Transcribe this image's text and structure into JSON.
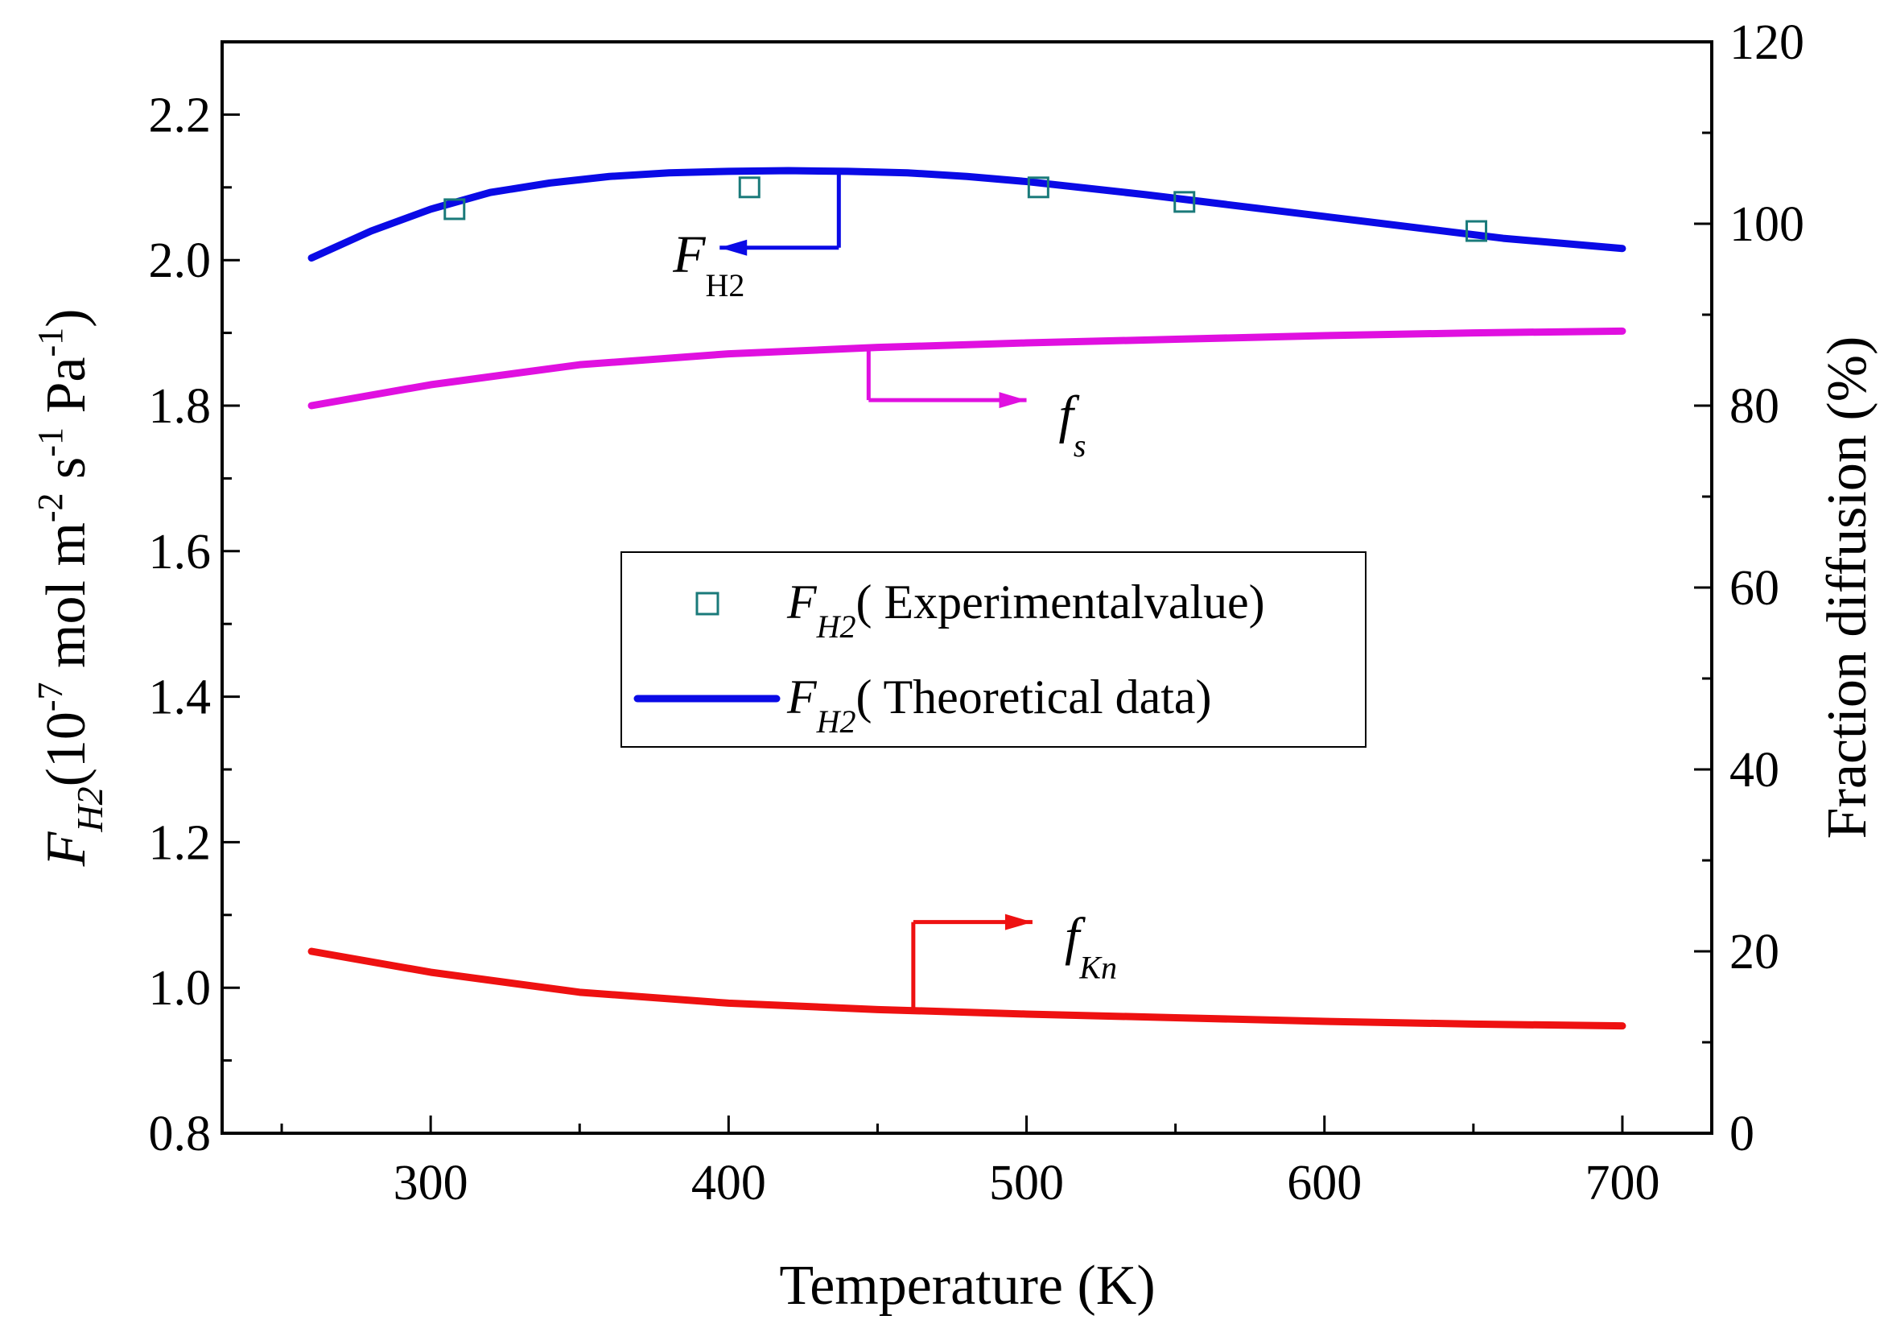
{
  "chart_data": {
    "type": "line",
    "x_axis": {
      "label": "Temperature (K)",
      "range": [
        230,
        730
      ],
      "ticks": [
        300,
        400,
        500,
        600,
        700
      ],
      "tick_labels": [
        "300",
        "400",
        "500",
        "600",
        "700"
      ]
    },
    "y_left": {
      "label_main": "F",
      "label_sub": "H2",
      "label_units": "(10-7 mol m-2 s-1 Pa-1)",
      "label_parts": [
        "(10",
        "-7",
        " mol m",
        "-2",
        " s",
        "-1",
        " Pa",
        "-1",
        ")"
      ],
      "range": [
        0.8,
        2.3
      ],
      "ticks": [
        0.8,
        1.0,
        1.2,
        1.4,
        1.6,
        1.8,
        2.0,
        2.2
      ],
      "tick_labels": [
        "0.8",
        "1.0",
        "1.2",
        "1.4",
        "1.6",
        "1.8",
        "2.0",
        "2.2"
      ]
    },
    "y_right": {
      "label": "Fraction diffusion (%)",
      "range": [
        0,
        120
      ],
      "ticks": [
        0,
        20,
        40,
        60,
        80,
        100,
        120
      ],
      "tick_labels": [
        "0",
        "20",
        "40",
        "60",
        "80",
        "100",
        "120"
      ]
    },
    "series": [
      {
        "name": "F_H2 (Theoretical data)",
        "axis": "left",
        "color": "#0a0ae6",
        "style": "line",
        "x": [
          260,
          280,
          300,
          320,
          340,
          360,
          380,
          400,
          420,
          440,
          460,
          480,
          500,
          520,
          540,
          560,
          580,
          600,
          620,
          640,
          660,
          680,
          700
        ],
        "y": [
          2.003,
          2.04,
          2.07,
          2.093,
          2.106,
          2.115,
          2.12,
          2.122,
          2.123,
          2.122,
          2.12,
          2.115,
          2.108,
          2.099,
          2.09,
          2.08,
          2.07,
          2.06,
          2.05,
          2.04,
          2.03,
          2.023,
          2.016
        ]
      },
      {
        "name": "F_H2 (Experimental value)",
        "axis": "left",
        "color": "#1a7a7a",
        "style": "markers",
        "x": [
          308,
          407,
          504,
          553,
          651
        ],
        "y": [
          2.07,
          2.1,
          2.1,
          2.08,
          2.04
        ]
      },
      {
        "name": "f_s",
        "axis": "right",
        "color": "#e010e0",
        "style": "line",
        "x": [
          260,
          300,
          350,
          400,
          450,
          500,
          550,
          600,
          650,
          700
        ],
        "y": [
          80.0,
          82.3,
          84.5,
          85.7,
          86.4,
          86.9,
          87.3,
          87.7,
          88.0,
          88.2
        ]
      },
      {
        "name": "f_Kn",
        "axis": "right",
        "color": "#ee1111",
        "style": "line",
        "x": [
          260,
          300,
          350,
          400,
          450,
          500,
          550,
          600,
          650,
          700
        ],
        "y": [
          20.0,
          17.7,
          15.5,
          14.3,
          13.6,
          13.1,
          12.7,
          12.3,
          12.0,
          11.8
        ]
      }
    ],
    "legend": {
      "placement": "center",
      "entries": [
        {
          "main": "F",
          "sub": "H2",
          "text": "( Experimentalvalue)",
          "kind": "marker",
          "series": 1
        },
        {
          "main": "F",
          "sub": "H2",
          "text": "( Theoretical data)",
          "kind": "line",
          "series": 0
        }
      ]
    },
    "annotations": [
      {
        "main": "F",
        "sub": "H2",
        "italic_main": true,
        "italic_sub": false,
        "points_to": "left",
        "series": 0,
        "bracket_x": 437,
        "arrow_to_x": 397
      },
      {
        "main": "f",
        "sub": "s",
        "italic_main": true,
        "italic_sub": true,
        "points_to": "right",
        "series": 2,
        "bracket_x": 447,
        "arrow_to_x": 500
      },
      {
        "main": "f",
        "sub": "Kn",
        "italic_main": true,
        "italic_sub": true,
        "points_to": "right",
        "series": 3,
        "bracket_x": 462,
        "arrow_to_x": 502
      }
    ]
  }
}
